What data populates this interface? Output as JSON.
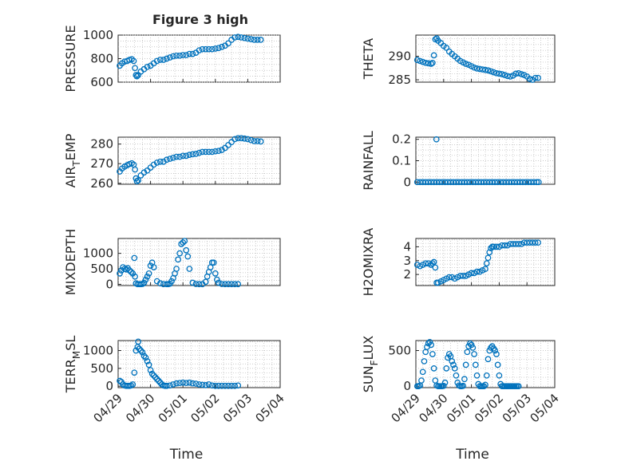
{
  "figure": {
    "title": "Figure 3 high"
  },
  "chart_data": [
    {
      "type": "scatter",
      "ylabel": "PRESSURE",
      "ylim": [
        600,
        1000
      ],
      "yticks": [
        600,
        800,
        1000
      ],
      "xlim": [
        0,
        5
      ],
      "xtick_values": [
        0,
        1,
        2,
        3,
        4,
        5
      ],
      "x": [
        0.05,
        0.12,
        0.2,
        0.28,
        0.35,
        0.42,
        0.48,
        0.52,
        0.55,
        0.58,
        0.62,
        0.7,
        0.8,
        0.9,
        1.0,
        1.1,
        1.2,
        1.3,
        1.4,
        1.5,
        1.6,
        1.7,
        1.8,
        1.9,
        2.0,
        2.1,
        2.2,
        2.3,
        2.4,
        2.5,
        2.6,
        2.7,
        2.8,
        2.9,
        3.0,
        3.1,
        3.2,
        3.3,
        3.4,
        3.5,
        3.6,
        3.7,
        3.8,
        3.9,
        4.0,
        4.1,
        4.2,
        4.3,
        4.4
      ],
      "y": [
        740,
        760,
        775,
        780,
        790,
        795,
        780,
        720,
        660,
        650,
        660,
        690,
        710,
        730,
        740,
        760,
        780,
        790,
        790,
        800,
        810,
        820,
        825,
        825,
        830,
        830,
        840,
        840,
        850,
        870,
        880,
        880,
        880,
        880,
        885,
        890,
        900,
        910,
        930,
        960,
        980,
        985,
        980,
        975,
        970,
        965,
        960,
        960,
        960
      ]
    },
    {
      "type": "scatter",
      "ylabel": "THETA",
      "ylim": [
        284.5,
        294.5
      ],
      "yticks": [
        285,
        290
      ],
      "xlim": [
        0,
        5
      ],
      "xtick_values": [
        0,
        1,
        2,
        3,
        4,
        5
      ],
      "x": [
        0.05,
        0.15,
        0.25,
        0.35,
        0.45,
        0.55,
        0.6,
        0.65,
        0.7,
        0.75,
        0.8,
        0.9,
        1.0,
        1.1,
        1.2,
        1.3,
        1.4,
        1.5,
        1.6,
        1.7,
        1.8,
        1.9,
        2.0,
        2.1,
        2.2,
        2.3,
        2.4,
        2.5,
        2.6,
        2.7,
        2.8,
        2.9,
        3.0,
        3.1,
        3.2,
        3.3,
        3.4,
        3.5,
        3.6,
        3.7,
        3.8,
        3.9,
        4.0,
        4.1,
        4.2,
        4.3,
        4.4
      ],
      "y": [
        289.2,
        289.0,
        288.8,
        288.6,
        288.5,
        288.4,
        288.6,
        290.2,
        293.6,
        293.8,
        293.3,
        292.8,
        292.2,
        291.8,
        291.0,
        290.5,
        290.0,
        289.5,
        289.0,
        288.7,
        288.4,
        288.2,
        287.9,
        287.6,
        287.4,
        287.3,
        287.2,
        287.1,
        287.0,
        286.8,
        286.6,
        286.4,
        286.3,
        286.2,
        286.0,
        285.8,
        285.7,
        285.9,
        286.3,
        286.4,
        286.2,
        286.0,
        285.7,
        285.2,
        285.0,
        285.4,
        285.4
      ]
    },
    {
      "type": "scatter",
      "ylabel": "AIR_TEMP",
      "ylim": [
        259.5,
        283.5
      ],
      "yticks": [
        260,
        270,
        280
      ],
      "xlim": [
        0,
        5
      ],
      "xtick_values": [
        0,
        1,
        2,
        3,
        4,
        5
      ],
      "x": [
        0.05,
        0.12,
        0.2,
        0.28,
        0.35,
        0.42,
        0.48,
        0.52,
        0.55,
        0.58,
        0.62,
        0.7,
        0.8,
        0.9,
        1.0,
        1.1,
        1.2,
        1.3,
        1.4,
        1.5,
        1.6,
        1.7,
        1.8,
        1.9,
        2.0,
        2.1,
        2.2,
        2.3,
        2.4,
        2.5,
        2.6,
        2.7,
        2.8,
        2.9,
        3.0,
        3.1,
        3.2,
        3.3,
        3.4,
        3.5,
        3.6,
        3.7,
        3.8,
        3.9,
        4.0,
        4.1,
        4.2,
        4.3,
        4.4
      ],
      "y": [
        266,
        267.5,
        268.5,
        269.2,
        269.8,
        270.2,
        269.5,
        267.0,
        262.5,
        261.0,
        261.5,
        264.0,
        265.5,
        266.5,
        268.0,
        269.5,
        270.5,
        271.0,
        271.0,
        272.0,
        272.5,
        273.0,
        273.5,
        273.5,
        274.0,
        274.0,
        274.5,
        274.8,
        275.0,
        275.5,
        276.0,
        276.0,
        276.0,
        276.0,
        276.3,
        276.5,
        277.0,
        278.0,
        279.5,
        281.0,
        282.5,
        283.0,
        283.0,
        282.8,
        282.5,
        282.0,
        281.5,
        281.5,
        281.3
      ]
    },
    {
      "type": "scatter",
      "ylabel": "RAINFALL",
      "ylim": [
        -0.01,
        0.21
      ],
      "yticks": [
        0,
        0.1,
        0.2
      ],
      "xlim": [
        0,
        5
      ],
      "xtick_values": [
        0,
        1,
        2,
        3,
        4,
        5
      ],
      "x": [
        0.05,
        0.15,
        0.25,
        0.35,
        0.45,
        0.55,
        0.65,
        0.75,
        0.85,
        0.95,
        1.05,
        1.15,
        1.25,
        1.35,
        1.45,
        1.55,
        1.65,
        1.75,
        1.85,
        1.95,
        2.05,
        2.15,
        2.25,
        2.35,
        2.45,
        2.55,
        2.65,
        2.75,
        2.85,
        2.95,
        3.05,
        3.15,
        3.25,
        3.35,
        3.45,
        3.55,
        3.65,
        3.75,
        3.85,
        3.95,
        4.05,
        4.15,
        4.25,
        4.35,
        4.42,
        0.74
      ],
      "y": [
        0,
        0,
        0,
        0,
        0,
        0,
        0,
        0,
        0,
        0,
        0,
        0,
        0,
        0,
        0,
        0,
        0,
        0,
        0,
        0,
        0,
        0,
        0,
        0,
        0,
        0,
        0,
        0,
        0,
        0,
        0,
        0,
        0,
        0,
        0,
        0,
        0,
        0,
        0,
        0,
        0,
        0,
        0,
        0,
        0,
        0.2
      ]
    },
    {
      "type": "scatter",
      "ylabel": "MIXDEPTH",
      "ylim": [
        -40,
        1480
      ],
      "yticks": [
        0,
        500,
        1000
      ],
      "xlim": [
        0,
        5
      ],
      "xtick_values": [
        0,
        1,
        2,
        3,
        4,
        5
      ],
      "x": [
        0.05,
        0.1,
        0.15,
        0.2,
        0.25,
        0.3,
        0.35,
        0.4,
        0.45,
        0.5,
        0.52,
        0.55,
        0.6,
        0.65,
        0.7,
        0.75,
        0.8,
        0.85,
        0.9,
        0.95,
        1.0,
        1.05,
        1.1,
        1.2,
        1.3,
        1.4,
        1.5,
        1.55,
        1.6,
        1.65,
        1.7,
        1.75,
        1.8,
        1.85,
        1.9,
        1.95,
        2.0,
        2.05,
        2.1,
        2.15,
        2.2,
        2.3,
        2.4,
        2.5,
        2.6,
        2.7,
        2.75,
        2.8,
        2.85,
        2.9,
        2.95,
        3.0,
        3.05,
        3.1,
        3.2,
        3.3,
        3.4,
        3.5,
        3.6,
        3.7
      ],
      "y": [
        350,
        450,
        550,
        500,
        480,
        520,
        450,
        400,
        350,
        850,
        250,
        30,
        5,
        5,
        5,
        10,
        50,
        150,
        250,
        350,
        600,
        700,
        550,
        100,
        30,
        5,
        5,
        5,
        20,
        100,
        200,
        350,
        500,
        800,
        1000,
        1300,
        1350,
        1400,
        1100,
        900,
        500,
        50,
        10,
        5,
        5,
        80,
        250,
        400,
        550,
        700,
        700,
        350,
        150,
        50,
        10,
        5,
        5,
        5,
        5,
        5
      ]
    },
    {
      "type": "scatter",
      "ylabel": "H2OMIXRA",
      "ylim": [
        1.2,
        4.6
      ],
      "yticks": [
        2,
        3,
        4
      ],
      "xlim": [
        0,
        5
      ],
      "xtick_values": [
        0,
        1,
        2,
        3,
        4,
        5
      ],
      "x": [
        0.05,
        0.15,
        0.25,
        0.35,
        0.45,
        0.55,
        0.6,
        0.65,
        0.7,
        0.75,
        0.8,
        0.9,
        1.0,
        1.1,
        1.2,
        1.3,
        1.4,
        1.5,
        1.6,
        1.7,
        1.8,
        1.9,
        2.0,
        2.1,
        2.2,
        2.3,
        2.4,
        2.5,
        2.55,
        2.6,
        2.65,
        2.7,
        2.75,
        2.8,
        2.9,
        3.0,
        3.1,
        3.2,
        3.3,
        3.4,
        3.5,
        3.6,
        3.7,
        3.8,
        3.9,
        4.0,
        4.1,
        4.2,
        4.3,
        4.4
      ],
      "y": [
        2.7,
        2.6,
        2.7,
        2.8,
        2.8,
        2.7,
        2.8,
        2.9,
        2.5,
        1.4,
        1.4,
        1.5,
        1.6,
        1.7,
        1.8,
        1.8,
        1.7,
        1.8,
        1.9,
        1.9,
        1.9,
        2.0,
        2.1,
        2.1,
        2.2,
        2.2,
        2.3,
        2.4,
        2.8,
        3.2,
        3.6,
        3.9,
        4.0,
        4.0,
        4.0,
        4.0,
        4.1,
        4.1,
        4.1,
        4.2,
        4.2,
        4.2,
        4.2,
        4.2,
        4.3,
        4.3,
        4.3,
        4.3,
        4.3,
        4.3
      ]
    },
    {
      "type": "scatter",
      "ylabel": "TERR_MSL",
      "ylim": [
        -40,
        1280
      ],
      "yticks": [
        0,
        500,
        1000
      ],
      "xlim": [
        0,
        5
      ],
      "xtick_values": [
        0,
        1,
        2,
        3,
        4,
        5
      ],
      "x": [
        0.05,
        0.1,
        0.15,
        0.2,
        0.25,
        0.3,
        0.35,
        0.4,
        0.45,
        0.5,
        0.55,
        0.6,
        0.62,
        0.65,
        0.7,
        0.75,
        0.8,
        0.85,
        0.9,
        0.95,
        1.0,
        1.05,
        1.1,
        1.15,
        1.2,
        1.25,
        1.3,
        1.35,
        1.4,
        1.45,
        1.5,
        1.6,
        1.7,
        1.8,
        1.9,
        2.0,
        2.1,
        2.2,
        2.3,
        2.4,
        2.5,
        2.6,
        2.7,
        2.8,
        2.9,
        3.0,
        3.1,
        3.2,
        3.3,
        3.4,
        3.5,
        3.6,
        3.7
      ],
      "y": [
        150,
        120,
        50,
        20,
        10,
        10,
        10,
        20,
        50,
        380,
        1000,
        1100,
        1250,
        1050,
        1000,
        950,
        850,
        800,
        700,
        600,
        450,
        350,
        300,
        250,
        200,
        150,
        100,
        50,
        20,
        10,
        10,
        20,
        50,
        80,
        90,
        100,
        90,
        100,
        80,
        70,
        50,
        40,
        30,
        50,
        20,
        10,
        10,
        10,
        10,
        10,
        10,
        10,
        20
      ]
    },
    {
      "type": "scatter",
      "ylabel": "SUN_FLUX",
      "ylim": [
        -20,
        640
      ],
      "yticks": [
        0,
        500
      ],
      "xlim": [
        0,
        5
      ],
      "xtick_values": [
        0,
        1,
        2,
        3,
        4,
        5
      ],
      "x": [
        0.05,
        0.1,
        0.15,
        0.2,
        0.25,
        0.3,
        0.35,
        0.4,
        0.45,
        0.5,
        0.55,
        0.6,
        0.65,
        0.7,
        0.75,
        0.8,
        0.85,
        0.9,
        0.95,
        1.0,
        1.05,
        1.1,
        1.15,
        1.2,
        1.25,
        1.3,
        1.35,
        1.4,
        1.45,
        1.5,
        1.55,
        1.6,
        1.65,
        1.7,
        1.75,
        1.8,
        1.85,
        1.9,
        1.95,
        2.0,
        2.05,
        2.1,
        2.15,
        2.2,
        2.25,
        2.3,
        2.35,
        2.4,
        2.45,
        2.5,
        2.55,
        2.6,
        2.65,
        2.7,
        2.75,
        2.8,
        2.85,
        2.9,
        2.95,
        3.0,
        3.05,
        3.1,
        3.15,
        3.2,
        3.25,
        3.3,
        3.35,
        3.4,
        3.45,
        3.5,
        3.55,
        3.6,
        3.65,
        3.7
      ],
      "y": [
        0,
        0,
        10,
        80,
        200,
        350,
        480,
        550,
        600,
        620,
        580,
        450,
        250,
        80,
        10,
        0,
        0,
        0,
        0,
        5,
        50,
        250,
        400,
        450,
        420,
        350,
        300,
        250,
        150,
        50,
        10,
        0,
        0,
        5,
        100,
        300,
        480,
        560,
        600,
        580,
        540,
        450,
        300,
        150,
        30,
        0,
        0,
        0,
        0,
        20,
        150,
        380,
        500,
        540,
        560,
        530,
        500,
        450,
        300,
        150,
        30,
        0,
        0,
        0,
        0,
        0,
        0,
        0,
        0,
        0,
        0,
        0,
        0,
        0
      ]
    }
  ],
  "axes_text": {
    "panels": [
      {
        "ylabel_main": "PRESSURE",
        "ylabel_sub": "",
        "ylabel_tail": ""
      },
      {
        "ylabel_main": "THETA",
        "ylabel_sub": "",
        "ylabel_tail": ""
      },
      {
        "ylabel_main": "AIR",
        "ylabel_sub": "T",
        "ylabel_tail": "EMP"
      },
      {
        "ylabel_main": "RAINFALL",
        "ylabel_sub": "",
        "ylabel_tail": ""
      },
      {
        "ylabel_main": "MIXDEPTH",
        "ylabel_sub": "",
        "ylabel_tail": ""
      },
      {
        "ylabel_main": "H2OMIXRA",
        "ylabel_sub": "",
        "ylabel_tail": ""
      },
      {
        "ylabel_main": "TERR",
        "ylabel_sub": "M",
        "ylabel_tail": "SL"
      },
      {
        "ylabel_main": "SUN",
        "ylabel_sub": "F",
        "ylabel_tail": "LUX"
      }
    ],
    "ytick_labels": [
      [
        "600",
        "800",
        "1000"
      ],
      [
        "285",
        "290"
      ],
      [
        "260",
        "270",
        "280"
      ],
      [
        "0",
        "0.1",
        "0.2"
      ],
      [
        "0",
        "500",
        "1000"
      ],
      [
        "2",
        "3",
        "4"
      ],
      [
        "0",
        "500",
        "1000"
      ],
      [
        "0",
        "500"
      ]
    ],
    "xtick_labels": [
      "04/29",
      "04/30",
      "05/01",
      "05/02",
      "05/03",
      "05/04"
    ],
    "xlabel": "Time"
  }
}
